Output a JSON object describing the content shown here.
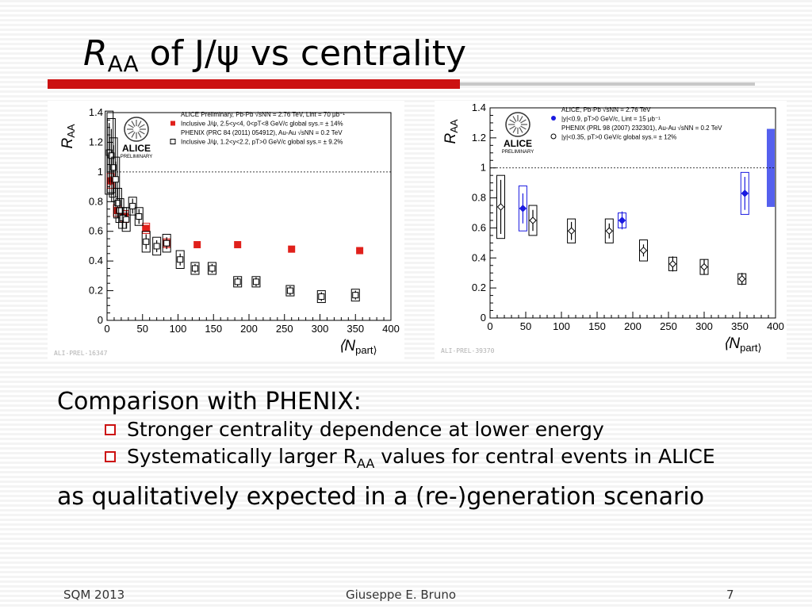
{
  "slide": {
    "title": {
      "r": "R",
      "sub": "AA",
      "rest": " of J/ψ vs centrality"
    },
    "body": {
      "line1": "Comparison with PHENIX:",
      "bullet1": "Stronger centrality dependence at lower energy",
      "bullet2_pre": "Systematically larger R",
      "bullet2_sub": "AA",
      "bullet2_post": " values for central events in ALICE",
      "line2": "as qualitatively expected in a (re-)generation scenario"
    },
    "footer": {
      "left": "SQM 2013",
      "center": "Giuseppe E. Bruno",
      "right": "7"
    }
  },
  "colors": {
    "accent_red": "#cc1111",
    "alice_red": "#e0201b",
    "alice_blue": "#1a1ae0",
    "band_blue": "#5560ee"
  },
  "chart_data": [
    {
      "type": "scatter",
      "ylabel": "R_AA",
      "xlabel": "⟨N_part⟩",
      "xlim": [
        0,
        400
      ],
      "ylim": [
        0,
        1.4
      ],
      "xticks": [
        0,
        50,
        100,
        150,
        200,
        250,
        300,
        350,
        400
      ],
      "yticks": [
        0,
        0.2,
        0.4,
        0.6,
        0.8,
        1,
        1.2,
        1.4
      ],
      "tick_labels_x": [
        "0",
        "50",
        "100",
        "150",
        "200",
        "250",
        "300",
        "350",
        "400"
      ],
      "tick_labels_y": [
        "0",
        "0.2",
        "0.4",
        "0.6",
        "0.8",
        "1",
        "1.2",
        "1.4"
      ],
      "reference_line": 1,
      "logo": {
        "name": "ALICE",
        "caption": "PRELIMINARY"
      },
      "legend": [
        "ALICE Preliminary, Pb-Pb √sNN = 2.76 TeV, Lint = 70 μb⁻¹",
        "Inclusive J/ψ, 2.5<y<4, 0<pT<8 GeV/c   global sys.= ± 14%",
        "PHENIX (PRC 84 (2011) 054912), Au-Au √sNN = 0.2 TeV",
        "Inclusive J/ψ, 1.2<y<2.2, pT>0 GeV/c   global sys.= ± 9.2%"
      ],
      "watermark": "ALI-PREL-16347",
      "series": [
        {
          "name": "Inclusive J/ψ, 2.5<y<4, 0<pT<8 GeV/c",
          "marker": "filled-square",
          "color": "#e0201b",
          "x": [
            5,
            14,
            25,
            55,
            84,
            127,
            184,
            260,
            356
          ],
          "y": [
            0.94,
            0.74,
            0.7,
            0.62,
            0.52,
            0.51,
            0.51,
            0.48,
            0.47
          ],
          "err": [
            0.03,
            0.02,
            0.02,
            0.02,
            0.02,
            0.02,
            0.02,
            0.015,
            0.015
          ],
          "sys": [
            0.05,
            0.04,
            0.04,
            0.035,
            0.03,
            0,
            0,
            0,
            0
          ]
        },
        {
          "name": "Inclusive J/ψ, 1.2<y<2.2, pT>0 GeV/c",
          "marker": "open-square",
          "color": "#000000",
          "x": [
            3,
            6,
            9,
            12,
            15,
            18,
            22,
            27,
            36,
            45,
            55,
            70,
            84,
            103,
            124,
            148,
            184,
            210,
            258,
            302,
            350
          ],
          "y": [
            1.13,
            1.11,
            1.03,
            0.95,
            0.79,
            0.74,
            0.69,
            0.68,
            0.77,
            0.7,
            0.53,
            0.5,
            0.52,
            0.41,
            0.35,
            0.35,
            0.26,
            0.26,
            0.2,
            0.16,
            0.17
          ],
          "err": [
            0.2,
            0.18,
            0.15,
            0.12,
            0.1,
            0.08,
            0.07,
            0.06,
            0.05,
            0.05,
            0.05,
            0.04,
            0.04,
            0.04,
            0.03,
            0.03,
            0.03,
            0.03,
            0.03,
            0.03,
            0.03
          ],
          "sys": [
            0.28,
            0.25,
            0.2,
            0.15,
            0.1,
            0.08,
            0.07,
            0.08,
            0.06,
            0.06,
            0.07,
            0.06,
            0.06,
            0.06,
            0.04,
            0.04,
            0.035,
            0.035,
            0.035,
            0.04,
            0.04
          ]
        }
      ]
    },
    {
      "type": "scatter",
      "ylabel": "R_AA",
      "xlabel": "⟨N_part⟩",
      "xlim": [
        0,
        400
      ],
      "ylim": [
        0,
        1.4
      ],
      "xticks": [
        0,
        50,
        100,
        150,
        200,
        250,
        300,
        350,
        400
      ],
      "yticks": [
        0,
        0.2,
        0.4,
        0.6,
        0.8,
        1,
        1.2,
        1.4
      ],
      "tick_labels_x": [
        "0",
        "50",
        "100",
        "150",
        "200",
        "250",
        "300",
        "350",
        "400"
      ],
      "tick_labels_y": [
        "0",
        "0.2",
        "0.4",
        "0.6",
        "0.8",
        "1",
        "1.2",
        "1.4"
      ],
      "reference_line": 1,
      "logo": {
        "name": "ALICE",
        "caption": "PRELIMINARY"
      },
      "legend": [
        "ALICE, Pb-Pb √sNN = 2.76 TeV",
        "|y|<0.9, pT>0 GeV/c, Lint = 15 μb⁻¹",
        "PHENIX (PRL 98 (2007) 232301), Au-Au √sNN = 0.2 TeV",
        "|y|<0.35, pT>0 GeV/c     global sys.= ± 12%"
      ],
      "watermark": "ALI-PREL-39370",
      "global_band": {
        "center": 1.0,
        "half_width": 0.26
      },
      "series": [
        {
          "name": "|y|<0.9, pT>0 GeV/c",
          "marker": "filled-diamond",
          "color": "#1a1ae0",
          "x": [
            46,
            185,
            357
          ],
          "y": [
            0.73,
            0.65,
            0.83
          ],
          "err": [
            0.1,
            0.06,
            0.11
          ],
          "sys": [
            0.15,
            0.05,
            0.14
          ]
        },
        {
          "name": "|y|<0.35, pT>0 GeV/c",
          "marker": "open-diamond",
          "color": "#000000",
          "x": [
            15,
            60,
            114,
            167,
            215,
            256,
            300,
            353
          ],
          "y": [
            0.74,
            0.65,
            0.58,
            0.58,
            0.45,
            0.36,
            0.34,
            0.26
          ],
          "err": [
            0.18,
            0.07,
            0.06,
            0.05,
            0.04,
            0.05,
            0.05,
            0.04
          ],
          "sys": [
            0.21,
            0.1,
            0.08,
            0.08,
            0.07,
            0.045,
            0.05,
            0.035
          ]
        }
      ]
    }
  ]
}
